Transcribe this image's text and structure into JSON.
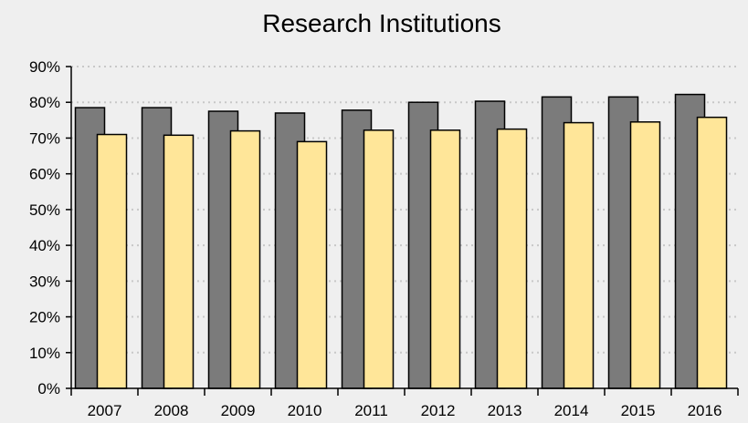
{
  "chart_data": {
    "type": "bar",
    "title": "Research Institutions",
    "xlabel": "",
    "ylabel": "",
    "categories": [
      "2007",
      "2008",
      "2009",
      "2010",
      "2011",
      "2012",
      "2013",
      "2014",
      "2015",
      "2016"
    ],
    "series": [
      {
        "color": "#7b7b7b",
        "values": [
          78.5,
          78.5,
          77.5,
          77.0,
          77.8,
          80.0,
          80.3,
          81.5,
          81.5,
          82.2
        ]
      },
      {
        "color": "#ffe699",
        "values": [
          71.0,
          70.8,
          72.0,
          69.0,
          72.2,
          72.2,
          72.5,
          74.3,
          74.5,
          75.8
        ]
      }
    ],
    "ylim": [
      0,
      90
    ],
    "yticks": [
      0,
      10,
      20,
      30,
      40,
      50,
      60,
      70,
      80,
      90
    ],
    "ytick_labels": [
      "0%",
      "10%",
      "20%",
      "30%",
      "40%",
      "50%",
      "60%",
      "70%",
      "80%",
      "90%"
    ],
    "grid": true,
    "legend": "none"
  }
}
